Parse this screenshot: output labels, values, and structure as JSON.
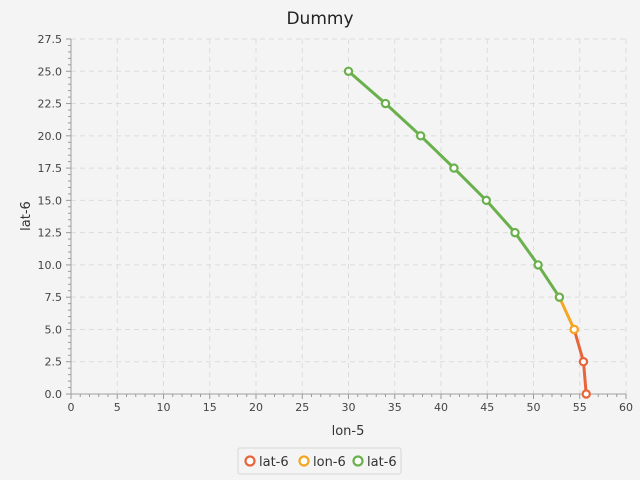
{
  "chart_data": {
    "type": "line",
    "title": "Dummy",
    "xlabel": "lon-5",
    "ylabel": "lat-6",
    "xlim": [
      0,
      60
    ],
    "ylim": [
      0,
      27.5
    ],
    "xticks": [
      0,
      5,
      10,
      15,
      20,
      25,
      30,
      35,
      40,
      45,
      50,
      55,
      60
    ],
    "yticks": [
      0.0,
      2.5,
      5.0,
      7.5,
      10.0,
      12.5,
      15.0,
      17.5,
      20.0,
      22.5,
      25.0,
      27.5
    ],
    "xtick_labels": [
      "0",
      "5",
      "10",
      "15",
      "20",
      "25",
      "30",
      "35",
      "40",
      "45",
      "50",
      "55",
      "60"
    ],
    "ytick_labels": [
      "0.0",
      "2.5",
      "5.0",
      "7.5",
      "10.0",
      "12.5",
      "15.0",
      "17.5",
      "20.0",
      "22.5",
      "25.0",
      "27.5"
    ],
    "grid": true,
    "legend_position": "bottom-center",
    "series": [
      {
        "name": "lat-6",
        "color": "#e8643a",
        "points": [
          [
            55.7,
            0.0
          ],
          [
            55.4,
            2.5
          ],
          [
            54.4,
            5.0
          ]
        ]
      },
      {
        "name": "lon-6",
        "color": "#f5a623",
        "points": [
          [
            54.4,
            5.0
          ],
          [
            52.8,
            7.5
          ]
        ]
      },
      {
        "name": "lat-6",
        "color": "#6ab04c",
        "points": [
          [
            52.8,
            7.5
          ],
          [
            50.5,
            10.0
          ],
          [
            48.0,
            12.5
          ],
          [
            44.9,
            15.0
          ],
          [
            41.4,
            17.5
          ],
          [
            37.8,
            20.0
          ],
          [
            34.0,
            22.5
          ],
          [
            30.0,
            25.0
          ]
        ]
      }
    ]
  }
}
